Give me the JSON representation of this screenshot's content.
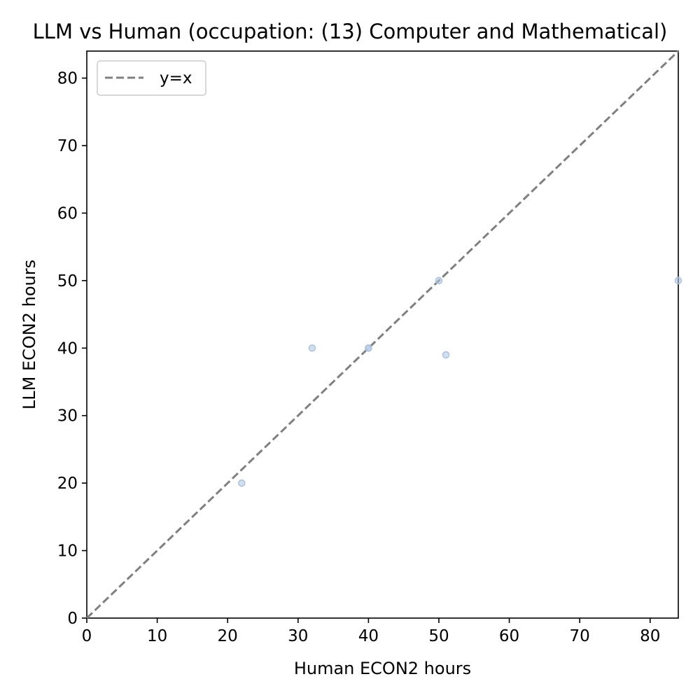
{
  "chart_data": {
    "type": "scatter",
    "title": "LLM vs Human (occupation: (13) Computer and Mathematical)",
    "xlabel": "Human ECON2 hours",
    "ylabel": "LLM ECON2 hours",
    "xlim": [
      0,
      84
    ],
    "ylim": [
      0,
      84
    ],
    "xticks": [
      0,
      10,
      20,
      30,
      40,
      50,
      60,
      70,
      80
    ],
    "yticks": [
      0,
      10,
      20,
      30,
      40,
      50,
      60,
      70,
      80
    ],
    "grid": false,
    "legend": {
      "placement": "top-left",
      "entries": [
        {
          "label": "y=x",
          "style": "dashed",
          "color": "#808080"
        }
      ]
    },
    "reference_line": {
      "label": "y=x",
      "color": "#808080"
    },
    "series": [
      {
        "color": "#b0c4de",
        "points": [
          {
            "x": 22,
            "y": 20
          },
          {
            "x": 32,
            "y": 40
          },
          {
            "x": 40,
            "y": 40
          },
          {
            "x": 40,
            "y": 40
          },
          {
            "x": 50,
            "y": 50
          },
          {
            "x": 51,
            "y": 39
          },
          {
            "x": 84,
            "y": 50
          }
        ]
      }
    ]
  }
}
